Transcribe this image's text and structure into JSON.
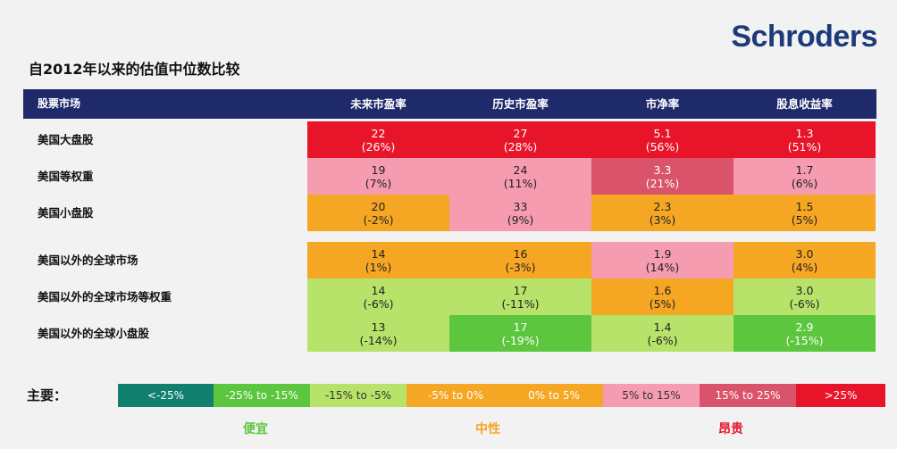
{
  "logo": "Schroders",
  "title": "自2012年以来的估值中位数比较",
  "header": {
    "market": "股票市场",
    "cols": [
      "未来市盈率",
      "历史市盈率",
      "市净率",
      "股息收益率"
    ]
  },
  "rows": [
    {
      "name": "美国大盘股",
      "cells": [
        {
          "v": "22",
          "p": "(26%)",
          "c": "#e8152a"
        },
        {
          "v": "27",
          "p": "(28%)",
          "c": "#e8152a"
        },
        {
          "v": "5.1",
          "p": "(56%)",
          "c": "#e8152a"
        },
        {
          "v": "1.3",
          "p": "(51%)",
          "c": "#e8152a"
        }
      ]
    },
    {
      "name": "美国等权重",
      "cells": [
        {
          "v": "19",
          "p": "(7%)",
          "c": "#f59cb0"
        },
        {
          "v": "24",
          "p": "(11%)",
          "c": "#f59cb0"
        },
        {
          "v": "3.3",
          "p": "(21%)",
          "c": "#d9536a"
        },
        {
          "v": "1.7",
          "p": "(6%)",
          "c": "#f59cb0"
        }
      ]
    },
    {
      "name": "美国小盘股",
      "cells": [
        {
          "v": "20",
          "p": "(-2%)",
          "c": "#f5a623"
        },
        {
          "v": "33",
          "p": "(9%)",
          "c": "#f59cb0"
        },
        {
          "v": "2.3",
          "p": "(3%)",
          "c": "#f5a623"
        },
        {
          "v": "1.5",
          "p": "(5%)",
          "c": "#f5a623"
        }
      ]
    },
    {
      "name": "美国以外的全球市场",
      "cells": [
        {
          "v": "14",
          "p": "(1%)",
          "c": "#f5a623"
        },
        {
          "v": "16",
          "p": "(-3%)",
          "c": "#f5a623"
        },
        {
          "v": "1.9",
          "p": "(14%)",
          "c": "#f59cb0"
        },
        {
          "v": "3.0",
          "p": "(4%)",
          "c": "#f5a623"
        }
      ]
    },
    {
      "name": "美国以外的全球市场等权重",
      "cells": [
        {
          "v": "14",
          "p": "(-6%)",
          "c": "#b7e36a"
        },
        {
          "v": "17",
          "p": "(-11%)",
          "c": "#b7e36a"
        },
        {
          "v": "1.6",
          "p": "(5%)",
          "c": "#f5a623"
        },
        {
          "v": "3.0",
          "p": "(-6%)",
          "c": "#b7e36a"
        }
      ]
    },
    {
      "name": "美国以外的全球小盘股",
      "cells": [
        {
          "v": "13",
          "p": "(-14%)",
          "c": "#b7e36a"
        },
        {
          "v": "17",
          "p": "(-19%)",
          "c": "#5cc63e"
        },
        {
          "v": "1.4",
          "p": "(-6%)",
          "c": "#b7e36a"
        },
        {
          "v": "2.9",
          "p": "(-15%)",
          "c": "#5cc63e"
        }
      ]
    }
  ],
  "legend": {
    "label": "主要：",
    "items": [
      {
        "text": "<-25%",
        "c": "#12806f"
      },
      {
        "text": "-25% to -15%",
        "c": "#5cc63e"
      },
      {
        "text": "-15% to -5%",
        "c": "#b7e36a"
      },
      {
        "text": "-5% to 0%",
        "c": "#f5a623"
      },
      {
        "text": "0% to 5%",
        "c": "#f5a623"
      },
      {
        "text": "5% to 15%",
        "c": "#f59cb0"
      },
      {
        "text": "15% to 25%",
        "c": "#d9536a"
      },
      {
        "text": ">25%",
        "c": "#e8152a"
      }
    ]
  },
  "categories": [
    {
      "text": "便宜",
      "c": "#5cc63e"
    },
    {
      "text": "中性",
      "c": "#f5a623"
    },
    {
      "text": "昂贵",
      "c": "#e8152a"
    }
  ]
}
